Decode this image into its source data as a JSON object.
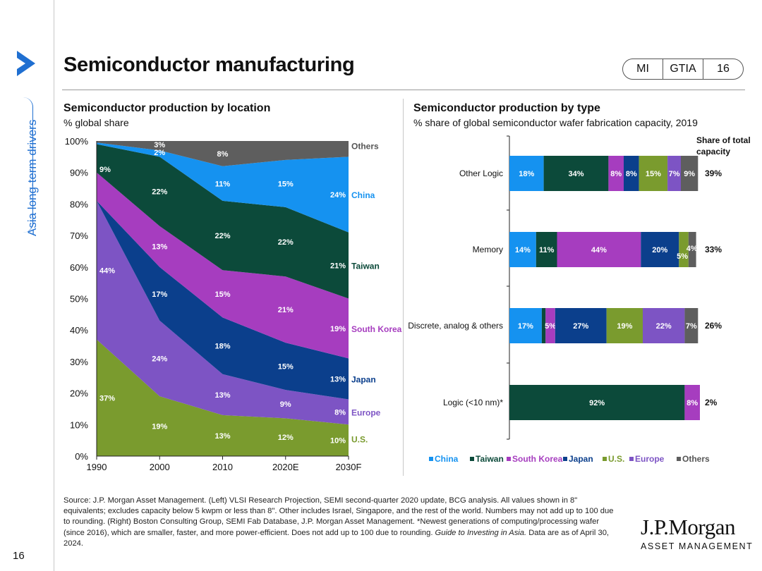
{
  "sidebar": {
    "section_label": "Asia long-term drivers",
    "page_number": "16"
  },
  "header": {
    "title": "Semiconductor manufacturing",
    "badge": [
      "MI",
      "GTIA",
      "16"
    ]
  },
  "colors": {
    "china": "#1592f0",
    "taiwan": "#0c4a3a",
    "south_korea": "#a63dbf",
    "japan": "#0b3f8c",
    "us": "#7a9b2e",
    "europe": "#7d54c4",
    "others": "#5e5e5e",
    "accent": "#1f6fd1"
  },
  "chart_data": [
    {
      "type": "area",
      "title": "Semiconductor production by location",
      "subtitle": "% global share",
      "x": [
        "1990",
        "2000",
        "2010",
        "2020E",
        "2030F"
      ],
      "ylim": [
        0,
        100
      ],
      "yticks": [
        "0%",
        "10%",
        "20%",
        "30%",
        "40%",
        "50%",
        "60%",
        "70%",
        "80%",
        "90%",
        "100%"
      ],
      "series": [
        {
          "name": "U.S.",
          "key": "us",
          "values": [
            37,
            19,
            13,
            12,
            10
          ],
          "labels": [
            "37%",
            "19%",
            "13%",
            "12%",
            "10%"
          ]
        },
        {
          "name": "Europe",
          "key": "europe",
          "values": [
            44,
            24,
            13,
            9,
            8
          ],
          "labels": [
            "44%",
            "24%",
            "13%",
            "9%",
            "8%"
          ]
        },
        {
          "name": "Japan",
          "key": "japan",
          "values": [
            0,
            17,
            18,
            15,
            13
          ],
          "labels": [
            "",
            "17%",
            "18%",
            "15%",
            "13%"
          ]
        },
        {
          "name": "South Korea",
          "key": "south_korea",
          "values": [
            9,
            13,
            15,
            21,
            19
          ],
          "labels": [
            "9%",
            "13%",
            "15%",
            "21%",
            "19%"
          ]
        },
        {
          "name": "Taiwan",
          "key": "taiwan",
          "values": [
            9,
            22,
            22,
            22,
            21
          ],
          "labels": [
            "",
            "22%",
            "22%",
            "22%",
            "21%"
          ]
        },
        {
          "name": "China",
          "key": "china",
          "values": [
            0.5,
            2,
            11,
            15,
            24
          ],
          "labels": [
            "",
            "2%",
            "11%",
            "15%",
            "24%"
          ]
        },
        {
          "name": "Others",
          "key": "others",
          "values": [
            0.5,
            3,
            8,
            6,
            5
          ],
          "labels": [
            "",
            "3%",
            "8%",
            "",
            ""
          ]
        }
      ]
    },
    {
      "type": "bar",
      "title": "Semiconductor production by type",
      "subtitle": "% share of global semiconductor wafer fabrication capacity, 2019",
      "share_header": "Share of total capacity",
      "categories": [
        "Other Logic",
        "Memory",
        "Discrete, analog & others",
        "Logic (<10 nm)*"
      ],
      "share_of_total": [
        "39%",
        "33%",
        "26%",
        "2%"
      ],
      "series_order": [
        "China",
        "Taiwan",
        "South Korea",
        "Japan",
        "U.S.",
        "Europe",
        "Others"
      ],
      "rows": [
        {
          "category": "Other Logic",
          "segments": [
            18,
            34,
            8,
            8,
            15,
            7,
            9
          ],
          "labels": [
            "18%",
            "34%",
            "8%",
            "8%",
            "15%",
            "7%",
            "9%"
          ]
        },
        {
          "category": "Memory",
          "segments": [
            14,
            11,
            44,
            20,
            5,
            0,
            4
          ],
          "labels": [
            "14%",
            "11%",
            "44%",
            "20%",
            "5%",
            "",
            "4%"
          ]
        },
        {
          "category": "Discrete, analog & others",
          "segments": [
            17,
            2,
            5,
            27,
            19,
            22,
            7
          ],
          "labels": [
            "17%",
            "",
            "5%",
            "27%",
            "19%",
            "22%",
            "7%"
          ]
        },
        {
          "category": "Logic (<10 nm)*",
          "segments": [
            0,
            92,
            8,
            0,
            0,
            0,
            0
          ],
          "labels": [
            "",
            "92%",
            "8%",
            "",
            "",
            "",
            ""
          ]
        }
      ]
    }
  ],
  "footer": {
    "source": "Source: J.P. Morgan Asset Management. (Left) VLSI Research Projection, SEMI second-quarter 2020 update, BCG analysis. All values shown in 8\" equivalents; excludes capacity below 5 kwpm or less than 8\". Other includes Israel, Singapore, and the rest of the world. Numbers may not add up to 100 due to rounding. (Right) Boston Consulting Group, SEMI Fab Database, J.P. Morgan Asset Management. *Newest generations of computing/processing wafer (since 2016), which are smaller, faster, and more power-efficient. Does not add up to 100 due to rounding.",
    "source_italic": "Guide to Investing in Asia.",
    "source_tail": " Data are as of April 30, 2024.",
    "logo_line1": "J.P.Morgan",
    "logo_line2": "ASSET MANAGEMENT"
  }
}
